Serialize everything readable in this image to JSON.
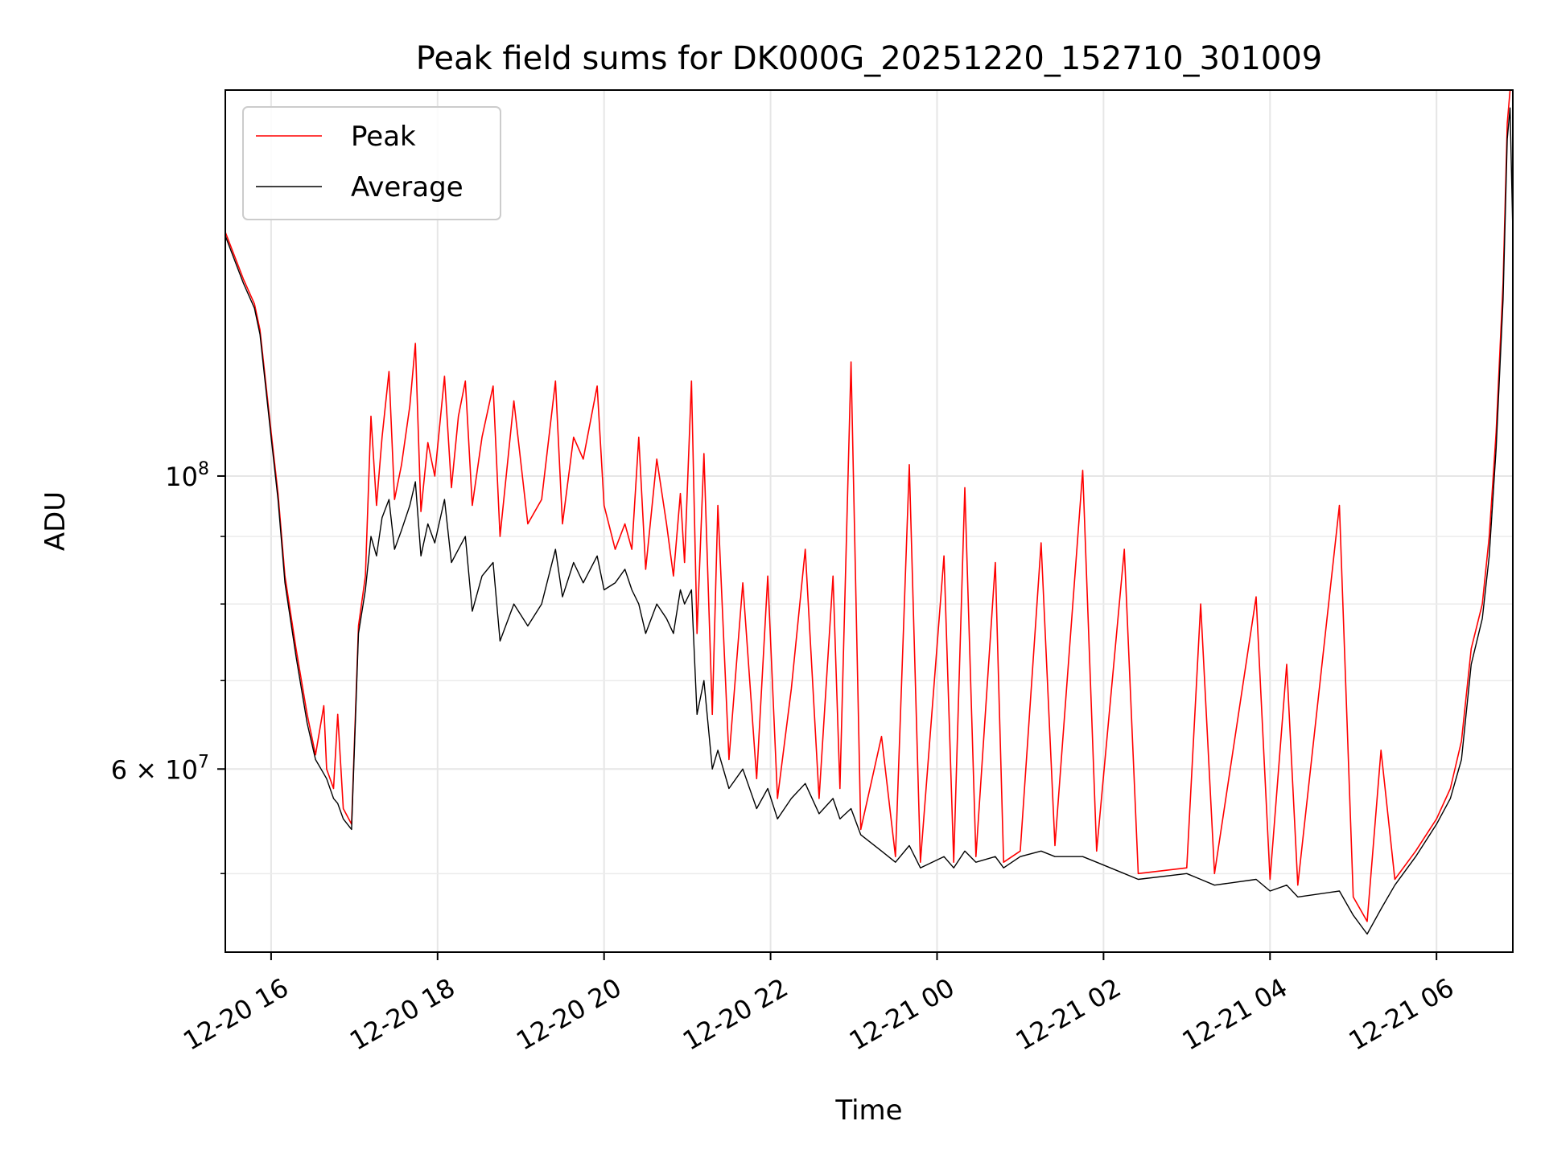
{
  "chart_data": {
    "type": "line",
    "title": "Peak field sums for DK000G_20251220_152710_301009",
    "xlabel": "Time",
    "ylabel": "ADU",
    "yscale": "log",
    "grid": true,
    "legend_position": "top-left",
    "xlim": [
      "2025-12-20T15:27",
      "2025-12-21T06:55"
    ],
    "ylim": [
      43600000,
      196000000
    ],
    "x_ticks": [
      {
        "t": "2025-12-20T16:00",
        "label": "12-20 16"
      },
      {
        "t": "2025-12-20T18:00",
        "label": "12-20 18"
      },
      {
        "t": "2025-12-20T20:00",
        "label": "12-20 20"
      },
      {
        "t": "2025-12-20T22:00",
        "label": "12-20 22"
      },
      {
        "t": "2025-12-21T00:00",
        "label": "12-21 00"
      },
      {
        "t": "2025-12-21T02:00",
        "label": "12-21 02"
      },
      {
        "t": "2025-12-21T04:00",
        "label": "12-21 04"
      },
      {
        "t": "2025-12-21T06:00",
        "label": "12-21 06"
      }
    ],
    "y_major_ticks": [
      {
        "v": 100000000,
        "base": "10",
        "exp": "8"
      },
      {
        "v": 60000000,
        "base": "6 × 10",
        "exp": "7"
      }
    ],
    "y_minor_ticks": [
      50000000,
      70000000,
      80000000,
      90000000
    ],
    "series": [
      {
        "name": "Peak",
        "color": "#ff0000",
        "points": [
          [
            "2025-12-20T15:27",
            153000000
          ],
          [
            "2025-12-20T15:40",
            141000000
          ],
          [
            "2025-12-20T15:48",
            135000000
          ],
          [
            "2025-12-20T15:52",
            129000000
          ],
          [
            "2025-12-20T16:00",
            108000000
          ],
          [
            "2025-12-20T16:05",
            97000000
          ],
          [
            "2025-12-20T16:10",
            84000000
          ],
          [
            "2025-12-20T16:18",
            74000000
          ],
          [
            "2025-12-20T16:26",
            66000000
          ],
          [
            "2025-12-20T16:32",
            61500000
          ],
          [
            "2025-12-20T16:38",
            67000000
          ],
          [
            "2025-12-20T16:40",
            60000000
          ],
          [
            "2025-12-20T16:45",
            58000000
          ],
          [
            "2025-12-20T16:48",
            66000000
          ],
          [
            "2025-12-20T16:52",
            56000000
          ],
          [
            "2025-12-20T16:58",
            54500000
          ],
          [
            "2025-12-20T17:03",
            77000000
          ],
          [
            "2025-12-20T17:08",
            84000000
          ],
          [
            "2025-12-20T17:12",
            111000000
          ],
          [
            "2025-12-20T17:16",
            95000000
          ],
          [
            "2025-12-20T17:20",
            107000000
          ],
          [
            "2025-12-20T17:25",
            120000000
          ],
          [
            "2025-12-20T17:29",
            96000000
          ],
          [
            "2025-12-20T17:34",
            102000000
          ],
          [
            "2025-12-20T17:40",
            113000000
          ],
          [
            "2025-12-20T17:44",
            126000000
          ],
          [
            "2025-12-20T17:48",
            94000000
          ],
          [
            "2025-12-20T17:53",
            106000000
          ],
          [
            "2025-12-20T17:58",
            100000000
          ],
          [
            "2025-12-20T18:05",
            119000000
          ],
          [
            "2025-12-20T18:10",
            98000000
          ],
          [
            "2025-12-20T18:15",
            111000000
          ],
          [
            "2025-12-20T18:20",
            118000000
          ],
          [
            "2025-12-20T18:25",
            95000000
          ],
          [
            "2025-12-20T18:32",
            107000000
          ],
          [
            "2025-12-20T18:40",
            117000000
          ],
          [
            "2025-12-20T18:45",
            90000000
          ],
          [
            "2025-12-20T18:55",
            114000000
          ],
          [
            "2025-12-20T19:05",
            92000000
          ],
          [
            "2025-12-20T19:15",
            96000000
          ],
          [
            "2025-12-20T19:25",
            118000000
          ],
          [
            "2025-12-20T19:30",
            92000000
          ],
          [
            "2025-12-20T19:38",
            107000000
          ],
          [
            "2025-12-20T19:45",
            103000000
          ],
          [
            "2025-12-20T19:55",
            117000000
          ],
          [
            "2025-12-20T20:00",
            95000000
          ],
          [
            "2025-12-20T20:08",
            88000000
          ],
          [
            "2025-12-20T20:15",
            92000000
          ],
          [
            "2025-12-20T20:20",
            88000000
          ],
          [
            "2025-12-20T20:25",
            107000000
          ],
          [
            "2025-12-20T20:30",
            85000000
          ],
          [
            "2025-12-20T20:38",
            103000000
          ],
          [
            "2025-12-20T20:45",
            92000000
          ],
          [
            "2025-12-20T20:50",
            84000000
          ],
          [
            "2025-12-20T20:55",
            97000000
          ],
          [
            "2025-12-20T20:58",
            86000000
          ],
          [
            "2025-12-20T21:03",
            118000000
          ],
          [
            "2025-12-20T21:07",
            76000000
          ],
          [
            "2025-12-20T21:12",
            104000000
          ],
          [
            "2025-12-20T21:18",
            66000000
          ],
          [
            "2025-12-20T21:22",
            95000000
          ],
          [
            "2025-12-20T21:30",
            61000000
          ],
          [
            "2025-12-20T21:40",
            83000000
          ],
          [
            "2025-12-20T21:50",
            59000000
          ],
          [
            "2025-12-20T21:58",
            84000000
          ],
          [
            "2025-12-20T22:05",
            57000000
          ],
          [
            "2025-12-20T22:15",
            69000000
          ],
          [
            "2025-12-20T22:25",
            88000000
          ],
          [
            "2025-12-20T22:35",
            57000000
          ],
          [
            "2025-12-20T22:45",
            84000000
          ],
          [
            "2025-12-20T22:50",
            58000000
          ],
          [
            "2025-12-20T22:58",
            122000000
          ],
          [
            "2025-12-20T23:05",
            54000000
          ],
          [
            "2025-12-20T23:20",
            63500000
          ],
          [
            "2025-12-20T23:30",
            51500000
          ],
          [
            "2025-12-20T23:40",
            102000000
          ],
          [
            "2025-12-20T23:48",
            51000000
          ],
          [
            "2025-12-21T00:05",
            87000000
          ],
          [
            "2025-12-21T00:12",
            51000000
          ],
          [
            "2025-12-21T00:20",
            98000000
          ],
          [
            "2025-12-21T00:28",
            51500000
          ],
          [
            "2025-12-21T00:42",
            86000000
          ],
          [
            "2025-12-21T00:48",
            51000000
          ],
          [
            "2025-12-21T01:00",
            52000000
          ],
          [
            "2025-12-21T01:15",
            89000000
          ],
          [
            "2025-12-21T01:25",
            52500000
          ],
          [
            "2025-12-21T01:45",
            101000000
          ],
          [
            "2025-12-21T01:55",
            52000000
          ],
          [
            "2025-12-21T02:15",
            88000000
          ],
          [
            "2025-12-21T02:25",
            50000000
          ],
          [
            "2025-12-21T03:00",
            50500000
          ],
          [
            "2025-12-21T03:10",
            80000000
          ],
          [
            "2025-12-21T03:20",
            50000000
          ],
          [
            "2025-12-21T03:50",
            81000000
          ],
          [
            "2025-12-21T04:00",
            49500000
          ],
          [
            "2025-12-21T04:12",
            72000000
          ],
          [
            "2025-12-21T04:20",
            49000000
          ],
          [
            "2025-12-21T04:50",
            95000000
          ],
          [
            "2025-12-21T05:00",
            48000000
          ],
          [
            "2025-12-21T05:10",
            46000000
          ],
          [
            "2025-12-21T05:20",
            62000000
          ],
          [
            "2025-12-21T05:30",
            49500000
          ],
          [
            "2025-12-21T05:45",
            52000000
          ],
          [
            "2025-12-21T06:00",
            55000000
          ],
          [
            "2025-12-21T06:10",
            58000000
          ],
          [
            "2025-12-21T06:18",
            63000000
          ],
          [
            "2025-12-21T06:25",
            74000000
          ],
          [
            "2025-12-21T06:33",
            80000000
          ],
          [
            "2025-12-21T06:38",
            90000000
          ],
          [
            "2025-12-21T06:43",
            108000000
          ],
          [
            "2025-12-21T06:48",
            140000000
          ],
          [
            "2025-12-21T06:51",
            185000000
          ],
          [
            "2025-12-21T06:53",
            196000000
          ],
          [
            "2025-12-21T06:55",
            196000000
          ]
        ]
      },
      {
        "name": "Average",
        "color": "#000000",
        "points": [
          [
            "2025-12-20T15:27",
            152000000
          ],
          [
            "2025-12-20T15:40",
            140000000
          ],
          [
            "2025-12-20T15:48",
            134000000
          ],
          [
            "2025-12-20T15:52",
            128000000
          ],
          [
            "2025-12-20T16:00",
            107000000
          ],
          [
            "2025-12-20T16:05",
            96000000
          ],
          [
            "2025-12-20T16:10",
            83000000
          ],
          [
            "2025-12-20T16:18",
            73000000
          ],
          [
            "2025-12-20T16:26",
            65000000
          ],
          [
            "2025-12-20T16:32",
            61000000
          ],
          [
            "2025-12-20T16:38",
            59500000
          ],
          [
            "2025-12-20T16:40",
            59000000
          ],
          [
            "2025-12-20T16:45",
            57000000
          ],
          [
            "2025-12-20T16:48",
            56500000
          ],
          [
            "2025-12-20T16:52",
            55000000
          ],
          [
            "2025-12-20T16:58",
            54000000
          ],
          [
            "2025-12-20T17:03",
            76000000
          ],
          [
            "2025-12-20T17:08",
            82000000
          ],
          [
            "2025-12-20T17:12",
            90000000
          ],
          [
            "2025-12-20T17:16",
            87000000
          ],
          [
            "2025-12-20T17:20",
            93000000
          ],
          [
            "2025-12-20T17:25",
            96000000
          ],
          [
            "2025-12-20T17:29",
            88000000
          ],
          [
            "2025-12-20T17:34",
            91000000
          ],
          [
            "2025-12-20T17:40",
            95000000
          ],
          [
            "2025-12-20T17:44",
            99000000
          ],
          [
            "2025-12-20T17:48",
            87000000
          ],
          [
            "2025-12-20T17:53",
            92000000
          ],
          [
            "2025-12-20T17:58",
            89000000
          ],
          [
            "2025-12-20T18:05",
            96000000
          ],
          [
            "2025-12-20T18:10",
            86000000
          ],
          [
            "2025-12-20T18:15",
            88000000
          ],
          [
            "2025-12-20T18:20",
            90000000
          ],
          [
            "2025-12-20T18:25",
            79000000
          ],
          [
            "2025-12-20T18:32",
            84000000
          ],
          [
            "2025-12-20T18:40",
            86000000
          ],
          [
            "2025-12-20T18:45",
            75000000
          ],
          [
            "2025-12-20T18:55",
            80000000
          ],
          [
            "2025-12-20T19:05",
            77000000
          ],
          [
            "2025-12-20T19:15",
            80000000
          ],
          [
            "2025-12-20T19:25",
            88000000
          ],
          [
            "2025-12-20T19:30",
            81000000
          ],
          [
            "2025-12-20T19:38",
            86000000
          ],
          [
            "2025-12-20T19:45",
            83000000
          ],
          [
            "2025-12-20T19:55",
            87000000
          ],
          [
            "2025-12-20T20:00",
            82000000
          ],
          [
            "2025-12-20T20:08",
            83000000
          ],
          [
            "2025-12-20T20:15",
            85000000
          ],
          [
            "2025-12-20T20:20",
            82000000
          ],
          [
            "2025-12-20T20:25",
            80000000
          ],
          [
            "2025-12-20T20:30",
            76000000
          ],
          [
            "2025-12-20T20:38",
            80000000
          ],
          [
            "2025-12-20T20:45",
            78000000
          ],
          [
            "2025-12-20T20:50",
            76000000
          ],
          [
            "2025-12-20T20:55",
            82000000
          ],
          [
            "2025-12-20T20:58",
            80000000
          ],
          [
            "2025-12-20T21:03",
            82000000
          ],
          [
            "2025-12-20T21:07",
            66000000
          ],
          [
            "2025-12-20T21:12",
            70000000
          ],
          [
            "2025-12-20T21:18",
            60000000
          ],
          [
            "2025-12-20T21:22",
            62000000
          ],
          [
            "2025-12-20T21:30",
            58000000
          ],
          [
            "2025-12-20T21:40",
            60000000
          ],
          [
            "2025-12-20T21:50",
            56000000
          ],
          [
            "2025-12-20T21:58",
            58000000
          ],
          [
            "2025-12-20T22:05",
            55000000
          ],
          [
            "2025-12-20T22:15",
            57000000
          ],
          [
            "2025-12-20T22:25",
            58500000
          ],
          [
            "2025-12-20T22:35",
            55500000
          ],
          [
            "2025-12-20T22:45",
            57000000
          ],
          [
            "2025-12-20T22:50",
            55000000
          ],
          [
            "2025-12-20T22:58",
            56000000
          ],
          [
            "2025-12-20T23:05",
            53500000
          ],
          [
            "2025-12-20T23:20",
            52000000
          ],
          [
            "2025-12-20T23:30",
            51000000
          ],
          [
            "2025-12-20T23:40",
            52500000
          ],
          [
            "2025-12-20T23:48",
            50500000
          ],
          [
            "2025-12-21T00:05",
            51500000
          ],
          [
            "2025-12-21T00:12",
            50500000
          ],
          [
            "2025-12-21T00:20",
            52000000
          ],
          [
            "2025-12-21T00:28",
            51000000
          ],
          [
            "2025-12-21T00:42",
            51500000
          ],
          [
            "2025-12-21T00:48",
            50500000
          ],
          [
            "2025-12-21T01:00",
            51500000
          ],
          [
            "2025-12-21T01:15",
            52000000
          ],
          [
            "2025-12-21T01:25",
            51500000
          ],
          [
            "2025-12-21T01:45",
            51500000
          ],
          [
            "2025-12-21T01:55",
            51000000
          ],
          [
            "2025-12-21T02:15",
            50000000
          ],
          [
            "2025-12-21T02:25",
            49500000
          ],
          [
            "2025-12-21T03:00",
            50000000
          ],
          [
            "2025-12-21T03:10",
            49500000
          ],
          [
            "2025-12-21T03:20",
            49000000
          ],
          [
            "2025-12-21T03:50",
            49500000
          ],
          [
            "2025-12-21T04:00",
            48500000
          ],
          [
            "2025-12-21T04:12",
            49000000
          ],
          [
            "2025-12-21T04:20",
            48000000
          ],
          [
            "2025-12-21T04:50",
            48500000
          ],
          [
            "2025-12-21T05:00",
            46500000
          ],
          [
            "2025-12-21T05:10",
            45000000
          ],
          [
            "2025-12-21T05:20",
            47000000
          ],
          [
            "2025-12-21T05:30",
            49000000
          ],
          [
            "2025-12-21T05:45",
            51500000
          ],
          [
            "2025-12-21T06:00",
            54500000
          ],
          [
            "2025-12-21T06:10",
            57000000
          ],
          [
            "2025-12-21T06:18",
            61000000
          ],
          [
            "2025-12-21T06:25",
            72000000
          ],
          [
            "2025-12-21T06:33",
            78000000
          ],
          [
            "2025-12-21T06:38",
            87000000
          ],
          [
            "2025-12-21T06:43",
            105000000
          ],
          [
            "2025-12-21T06:48",
            136000000
          ],
          [
            "2025-12-21T06:51",
            180000000
          ],
          [
            "2025-12-21T06:53",
            190000000
          ],
          [
            "2025-12-21T06:55",
            153000000
          ]
        ]
      }
    ]
  }
}
